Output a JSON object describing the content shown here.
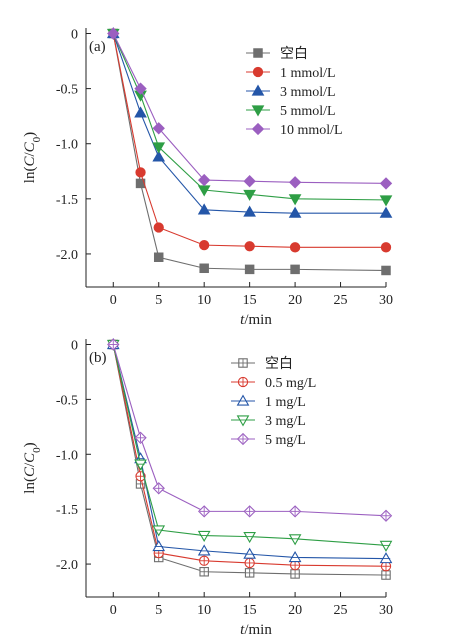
{
  "chart_data": [
    {
      "type": "line",
      "panel_label": "(a)",
      "xlabel": "t/min",
      "ylabel": "ln(C/C0)",
      "xlim": [
        -3,
        30
      ],
      "ylim": [
        -2.3,
        0.05
      ],
      "xticks": [
        0,
        5,
        10,
        15,
        20,
        25,
        30
      ],
      "yticks": [
        0,
        -0.5,
        -1.0,
        -1.5,
        -2.0
      ],
      "ytick_labels": [
        "0",
        "-0.5",
        "-1.0",
        "-1.5",
        "-2.0"
      ],
      "legend_position": "top-right",
      "marker_fill": "filled",
      "x": [
        0,
        3,
        5,
        10,
        15,
        20,
        30
      ],
      "series": [
        {
          "name": "空白",
          "color": "#6e6e6e",
          "marker": "square",
          "values": [
            0,
            -1.36,
            -2.03,
            -2.13,
            -2.14,
            -2.14,
            -2.15
          ]
        },
        {
          "name": "1 mmol/L",
          "color": "#d83a2f",
          "marker": "circle",
          "values": [
            0,
            -1.26,
            -1.76,
            -1.92,
            -1.93,
            -1.94,
            -1.94
          ]
        },
        {
          "name": "3 mmol/L",
          "color": "#2456a8",
          "marker": "triangle-up",
          "values": [
            0,
            -0.72,
            -1.12,
            -1.6,
            -1.62,
            -1.63,
            -1.63
          ]
        },
        {
          "name": "5 mmol/L",
          "color": "#2e9e45",
          "marker": "triangle-down",
          "values": [
            0,
            -0.56,
            -1.03,
            -1.42,
            -1.46,
            -1.5,
            -1.51
          ]
        },
        {
          "name": "10 mmol/L",
          "color": "#9b5fc0",
          "marker": "diamond",
          "values": [
            0,
            -0.5,
            -0.86,
            -1.33,
            -1.34,
            -1.35,
            -1.36
          ]
        }
      ]
    },
    {
      "type": "line",
      "panel_label": "(b)",
      "xlabel": "t/min",
      "ylabel": "ln(C/C0)",
      "xlim": [
        -3,
        30
      ],
      "ylim": [
        -2.3,
        0.05
      ],
      "xticks": [
        0,
        5,
        10,
        15,
        20,
        25,
        30
      ],
      "yticks": [
        0,
        -0.5,
        -1.0,
        -1.5,
        -2.0
      ],
      "ytick_labels": [
        "0",
        "-0.5",
        "-1.0",
        "-1.5",
        "-2.0"
      ],
      "legend_position": "top-right",
      "marker_fill": "open",
      "x": [
        0,
        3,
        5,
        10,
        15,
        20,
        30
      ],
      "series": [
        {
          "name": "空白",
          "color": "#6e6e6e",
          "marker": "square-cross",
          "values": [
            0,
            -1.27,
            -1.94,
            -2.07,
            -2.08,
            -2.09,
            -2.1
          ]
        },
        {
          "name": "0.5 mg/L",
          "color": "#d83a2f",
          "marker": "circle-cross",
          "values": [
            0,
            -1.2,
            -1.9,
            -1.97,
            -1.99,
            -2.01,
            -2.02
          ]
        },
        {
          "name": "1 mg/L",
          "color": "#2456a8",
          "marker": "triangle-up-line",
          "values": [
            0,
            -1.04,
            -1.84,
            -1.88,
            -1.91,
            -1.94,
            -1.95
          ]
        },
        {
          "name": "3 mg/L",
          "color": "#2e9e45",
          "marker": "triangle-down-line",
          "values": [
            0,
            -1.09,
            -1.69,
            -1.74,
            -1.75,
            -1.77,
            -1.83
          ]
        },
        {
          "name": "5 mg/L",
          "color": "#9b5fc0",
          "marker": "diamond-cross",
          "values": [
            0,
            -0.85,
            -1.31,
            -1.52,
            -1.52,
            -1.52,
            -1.56
          ]
        }
      ]
    }
  ]
}
